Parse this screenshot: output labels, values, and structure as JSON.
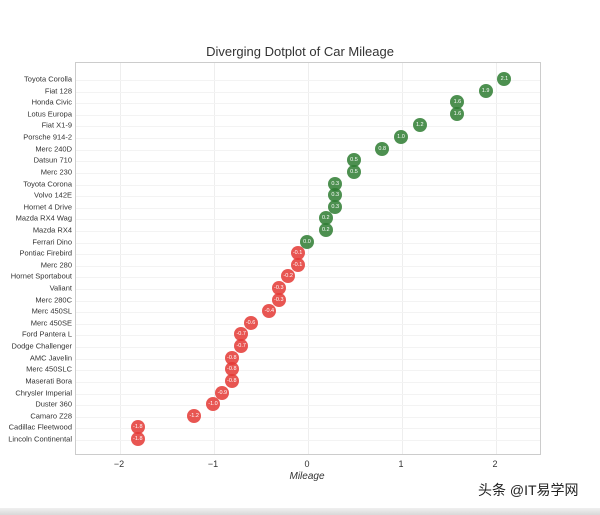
{
  "chart_data": {
    "type": "scatter",
    "title": "Diverging Dotplot of Car Mileage",
    "xlabel": "Mileage",
    "ylabel": "",
    "xlim": [
      -2.5,
      2.5
    ],
    "xticks": [
      -2,
      -1,
      0,
      1,
      2
    ],
    "xtick_labels": [
      "−2",
      "−1",
      "0",
      "1",
      "2"
    ],
    "grid": true,
    "positive_color": "#2e7d32",
    "negative_color": "#e53935",
    "categories": [
      "Toyota Corolla",
      "Fiat 128",
      "Honda Civic",
      "Lotus Europa",
      "Fiat X1-9",
      "Porsche 914-2",
      "Merc 240D",
      "Datsun 710",
      "Merc 230",
      "Toyota Corona",
      "Volvo 142E",
      "Hornet 4 Drive",
      "Mazda RX4 Wag",
      "Mazda RX4",
      "Ferrari Dino",
      "Pontiac Firebird",
      "Merc 280",
      "Hornet Sportabout",
      "Valiant",
      "Merc 280C",
      "Merc 450SL",
      "Merc 450SE",
      "Ford Pantera L",
      "Dodge Challenger",
      "AMC Javelin",
      "Merc 450SLC",
      "Maserati Bora",
      "Chrysler Imperial",
      "Duster 360",
      "Camaro Z28",
      "Cadillac Fleetwood",
      "Lincoln Continental"
    ],
    "values": [
      2.1,
      1.9,
      1.6,
      1.6,
      1.2,
      1.0,
      0.8,
      0.5,
      0.5,
      0.3,
      0.3,
      0.3,
      0.2,
      0.2,
      0.0,
      -0.1,
      -0.1,
      -0.2,
      -0.3,
      -0.3,
      -0.4,
      -0.6,
      -0.7,
      -0.7,
      -0.8,
      -0.8,
      -0.8,
      -0.9,
      -1.0,
      -1.2,
      -1.8,
      -1.8
    ],
    "labels": [
      "2.1",
      "1.9",
      "1.6",
      "1.6",
      "1.2",
      "1.0",
      "0.8",
      "0.5",
      "0.5",
      "0.3",
      "0.3",
      "0.3",
      "0.2",
      "0.2",
      "0.0",
      "-0.1",
      "-0.1",
      "-0.2",
      "-0.3",
      "-0.3",
      "-0.4",
      "-0.6",
      "-0.7",
      "-0.7",
      "-0.8",
      "-0.8",
      "-0.8",
      "-0.9",
      "-1.0",
      "-1.2",
      "-1.8",
      "-1.8"
    ]
  },
  "watermark": "头条 @IT易学网"
}
